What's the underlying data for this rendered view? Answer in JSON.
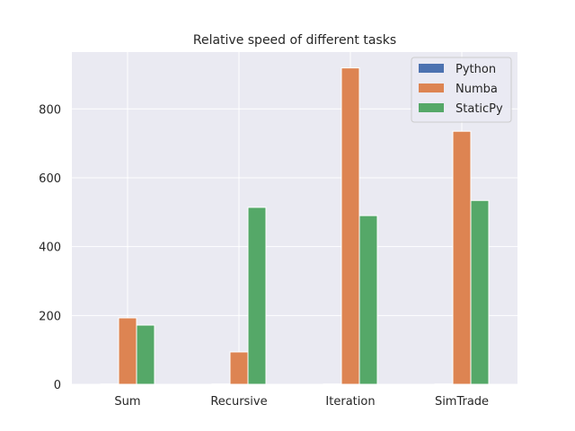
{
  "chart_data": {
    "type": "bar",
    "title": "Relative speed of different tasks",
    "xlabel": "",
    "ylabel": "",
    "categories": [
      "Sum",
      "Recursive",
      "Iteration",
      "SimTrade"
    ],
    "series": [
      {
        "name": "Python",
        "color": "#4c72b0",
        "values": [
          1,
          1,
          1,
          1
        ]
      },
      {
        "name": "Numba",
        "color": "#dd8452",
        "values": [
          193,
          94,
          919,
          735
        ]
      },
      {
        "name": "StaticPy",
        "color": "#55a868",
        "values": [
          172,
          514,
          490,
          534
        ]
      }
    ],
    "ylim": [
      0,
      965
    ],
    "yticks": [
      0,
      200,
      400,
      600,
      800
    ],
    "grid": true,
    "legend_position": "top-right",
    "style": {
      "plot_background": "#eaeaf2",
      "grid_color": "#ffffff"
    }
  }
}
